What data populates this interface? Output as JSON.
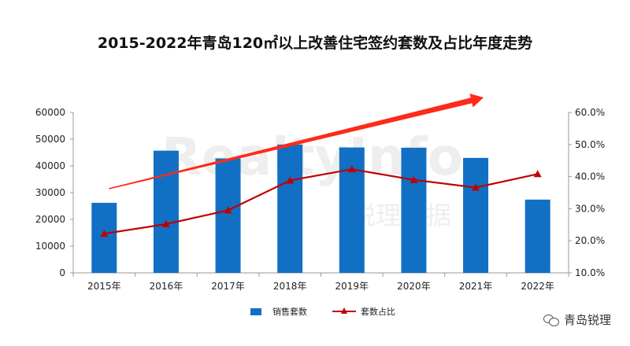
{
  "chart_data": {
    "type": "bar+line",
    "title": "2015-2022年青岛120㎡以上改善住宅签约套数及占比年度走势",
    "categories": [
      "2015年",
      "2016年",
      "2017年",
      "2018年",
      "2019年",
      "2020年",
      "2021年",
      "2022年"
    ],
    "series": [
      {
        "name": "销售套数",
        "type": "bar",
        "axis": "left",
        "color": "#1170C4",
        "values": [
          26200,
          45700,
          42800,
          48000,
          46900,
          46800,
          43000,
          27400
        ]
      },
      {
        "name": "套数占比",
        "type": "line",
        "axis": "right",
        "color": "#C00000",
        "marker": "triangle",
        "values": [
          22.2,
          25.2,
          29.5,
          38.8,
          42.3,
          39.0,
          36.6,
          40.8
        ]
      }
    ],
    "y_left": {
      "min": 0,
      "max": 60000,
      "ticks": [
        "0",
        "10000",
        "20000",
        "30000",
        "40000",
        "50000",
        "60000"
      ]
    },
    "y_right": {
      "min": 10,
      "max": 60,
      "ticks": [
        "10.0%",
        "20.0%",
        "30.0%",
        "40.0%",
        "50.0%",
        "60.0%"
      ]
    },
    "trend_arrow": {
      "color": "#FF2A1A",
      "from_category": 0,
      "to_category": 6
    },
    "legend_position": "bottom-center",
    "grid": false
  },
  "watermark": {
    "text": "RealtyInfo",
    "subtext": "锐理数据"
  },
  "badge": {
    "icon": "wechat-icon",
    "label": "青岛锐理"
  }
}
